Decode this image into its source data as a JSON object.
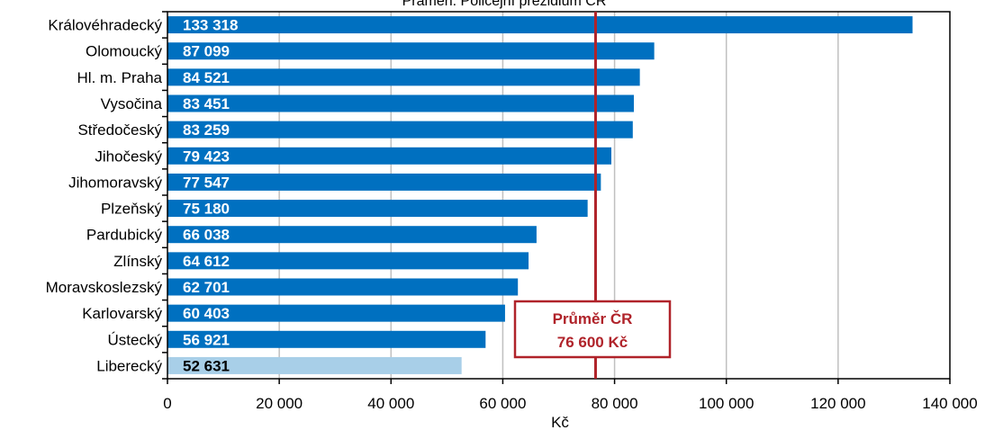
{
  "source_text": "Pramen: Policejní prezidium ČR",
  "colors": {
    "bar": "#0070c0",
    "highlight_bar": "#a8cfe8",
    "average_line": "#b0232a",
    "grid": "#c0c0c0"
  },
  "chart_data": {
    "type": "bar",
    "orientation": "horizontal",
    "categories": [
      "Královéhradecký",
      "Olomoucký",
      "Hl. m. Praha",
      "Vysočina",
      "Středočeský",
      "Jihočeský",
      "Jihomoravský",
      "Plzeňský",
      "Pardubický",
      "Zlínský",
      "Moravskoslezský",
      "Karlovarský",
      "Ústecký",
      "Liberecký"
    ],
    "values": [
      133318,
      87099,
      84521,
      83451,
      83259,
      79423,
      77547,
      75180,
      66038,
      64612,
      62701,
      60403,
      56921,
      52631
    ],
    "value_labels": [
      "133 318",
      "87 099",
      "84 521",
      "83 451",
      "83 259",
      "79 423",
      "77 547",
      "75 180",
      "66 038",
      "64 612",
      "62 701",
      "60 403",
      "56 921",
      "52 631"
    ],
    "highlighted_category": "Liberecký",
    "xlabel": "Kč",
    "xlim": [
      0,
      140000
    ],
    "xticks": [
      0,
      20000,
      40000,
      60000,
      80000,
      100000,
      120000,
      140000
    ],
    "xtick_labels": [
      "0",
      "20 000",
      "40 000",
      "60 000",
      "80 000",
      "100 000",
      "120 000",
      "140 000"
    ],
    "grid": true,
    "average": {
      "value": 76600,
      "label_line1": "Průměr ČR",
      "label_line2": "76 600 Kč"
    }
  }
}
